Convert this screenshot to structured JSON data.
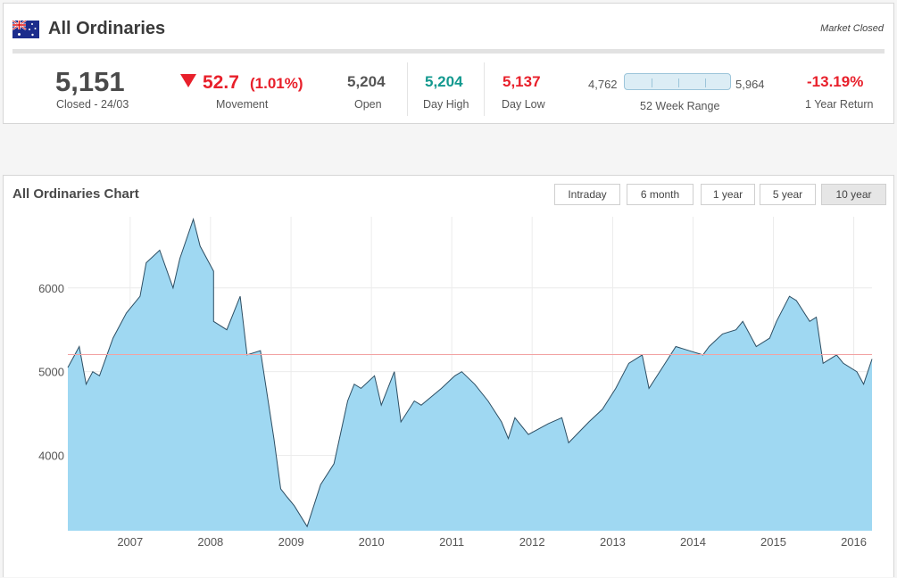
{
  "header": {
    "title": "All Ordinaries",
    "market_status": "Market Closed",
    "flag_icon": "australia-flag-icon"
  },
  "summary": {
    "value": "5,151",
    "value_label": "Closed - 24/03",
    "movement": "52.7",
    "movement_pct": "(1.01%)",
    "movement_label": "Movement",
    "open": "5,204",
    "open_label": "Open",
    "day_high": "5,204",
    "day_high_label": "Day High",
    "day_low": "5,137",
    "day_low_label": "Day Low",
    "range_low": "4,762",
    "range_high": "5,964",
    "range_label": "52 Week Range",
    "range_position": 0.33,
    "year_return": "-13.19%",
    "year_return_label": "1 Year Return"
  },
  "colors": {
    "down": "#e8202b",
    "up": "#13998f",
    "area_fill": "#9fd8f2",
    "area_stroke": "#2d4e63",
    "ref_line": "#f2a2a2"
  },
  "chart": {
    "title": "All Ordinaries Chart",
    "buttons": [
      "Intraday",
      "6 month",
      "1 year",
      "5 year",
      "10 year"
    ],
    "active_button": "10 year"
  },
  "chart_data": {
    "type": "area",
    "title": "All Ordinaries Chart",
    "xlabel": "",
    "ylabel": "",
    "x_ticks": [
      "2007",
      "2008",
      "2009",
      "2010",
      "2011",
      "2012",
      "2013",
      "2014",
      "2015",
      "2016"
    ],
    "y_ticks": [
      4000,
      5000,
      6000
    ],
    "xlim": [
      "2006-03-24",
      "2016-03-24"
    ],
    "ylim": [
      3100,
      6850
    ],
    "reference_line": 5204,
    "grid": true,
    "legend": "none",
    "series": [
      {
        "x": [
          "2006-03",
          "2006-05",
          "2006-06",
          "2006-07",
          "2006-08",
          "2006-10",
          "2006-12",
          "2007-02",
          "2007-03",
          "2007-05",
          "2007-07",
          "2007-08",
          "2007-10",
          "2007-11",
          "2008-01",
          "2008-01",
          "2008-03",
          "2008-05",
          "2008-06",
          "2008-08",
          "2008-10",
          "2008-11",
          "2008-12",
          "2009-01",
          "2009-03",
          "2009-05",
          "2009-07",
          "2009-09",
          "2009-10",
          "2009-11",
          "2010-01",
          "2010-02",
          "2010-04",
          "2010-05",
          "2010-07",
          "2010-08",
          "2010-11",
          "2011-01",
          "2011-02",
          "2011-04",
          "2011-06",
          "2011-08",
          "2011-09",
          "2011-10",
          "2011-12",
          "2012-03",
          "2012-05",
          "2012-06",
          "2012-09",
          "2012-11",
          "2013-01",
          "2013-03",
          "2013-05",
          "2013-06",
          "2013-08",
          "2013-10",
          "2013-12",
          "2014-02",
          "2014-03",
          "2014-05",
          "2014-07",
          "2014-08",
          "2014-10",
          "2014-12",
          "2015-01",
          "2015-03",
          "2015-04",
          "2015-06",
          "2015-07",
          "2015-08",
          "2015-10",
          "2015-11",
          "2016-01",
          "2016-02",
          "2016-03"
        ],
        "values": [
          5050,
          5300,
          4850,
          5000,
          4950,
          5400,
          5700,
          5900,
          6300,
          6450,
          6000,
          6350,
          6820,
          6500,
          6200,
          5600,
          5500,
          5900,
          5200,
          5250,
          4200,
          3600,
          3500,
          3400,
          3150,
          3650,
          3900,
          4650,
          4850,
          4800,
          4950,
          4600,
          5000,
          4400,
          4650,
          4600,
          4800,
          4950,
          5000,
          4850,
          4650,
          4400,
          4200,
          4450,
          4250,
          4380,
          4450,
          4150,
          4400,
          4550,
          4800,
          5100,
          5200,
          4800,
          5050,
          5300,
          5250,
          5200,
          5300,
          5450,
          5500,
          5600,
          5300,
          5400,
          5600,
          5900,
          5850,
          5600,
          5650,
          5100,
          5200,
          5100,
          5000,
          4850,
          5151
        ]
      }
    ]
  }
}
